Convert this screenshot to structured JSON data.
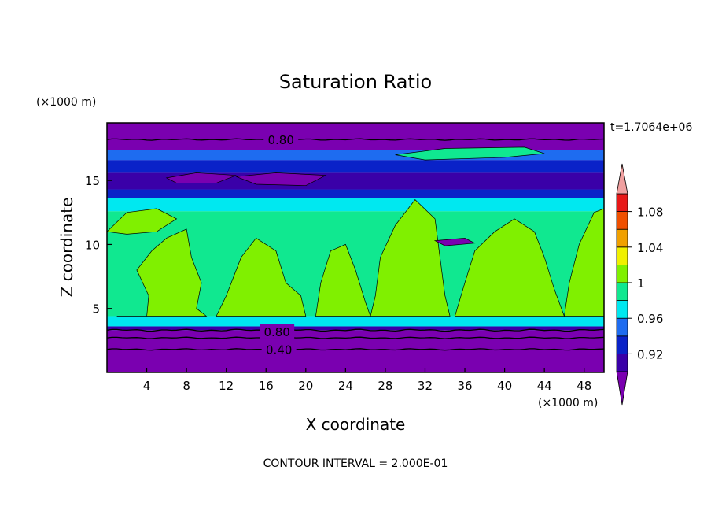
{
  "chart_data": {
    "type": "contour",
    "title": "Saturation Ratio",
    "time_label": "t=1.7064e+06",
    "xlabel": "X coordinate",
    "ylabel": "Z coordinate",
    "x_unit": "(×1000 m)",
    "y_unit": "(×1000 m)",
    "xlim": [
      0,
      50
    ],
    "ylim": [
      0,
      19.5
    ],
    "x_ticks": [
      4,
      8,
      12,
      16,
      20,
      24,
      28,
      32,
      36,
      40,
      44,
      48
    ],
    "y_ticks": [
      5,
      10,
      15
    ],
    "contour_labels": [
      {
        "text": "0.80",
        "x": 17.5,
        "y": 18.2
      },
      {
        "text": "0.80",
        "x": 17.1,
        "y": 3.2
      },
      {
        "text": "0.40",
        "x": 17.3,
        "y": 1.8
      }
    ],
    "colorbar": {
      "levels": [
        0.92,
        0.96,
        1,
        1.04,
        1.08
      ],
      "labels": [
        "0.92",
        "0.96",
        "1",
        "1.04",
        "1.08"
      ],
      "colors": [
        "#7a00b0",
        "#3a00a8",
        "#0a22c8",
        "#1e6cf0",
        "#00e8f0",
        "#10e890",
        "#80f000",
        "#f0f000",
        "#f0a000",
        "#f05000",
        "#e81818",
        "#f0a0a0"
      ]
    },
    "footer": "CONTOUR INTERVAL = 2.000E-01"
  }
}
